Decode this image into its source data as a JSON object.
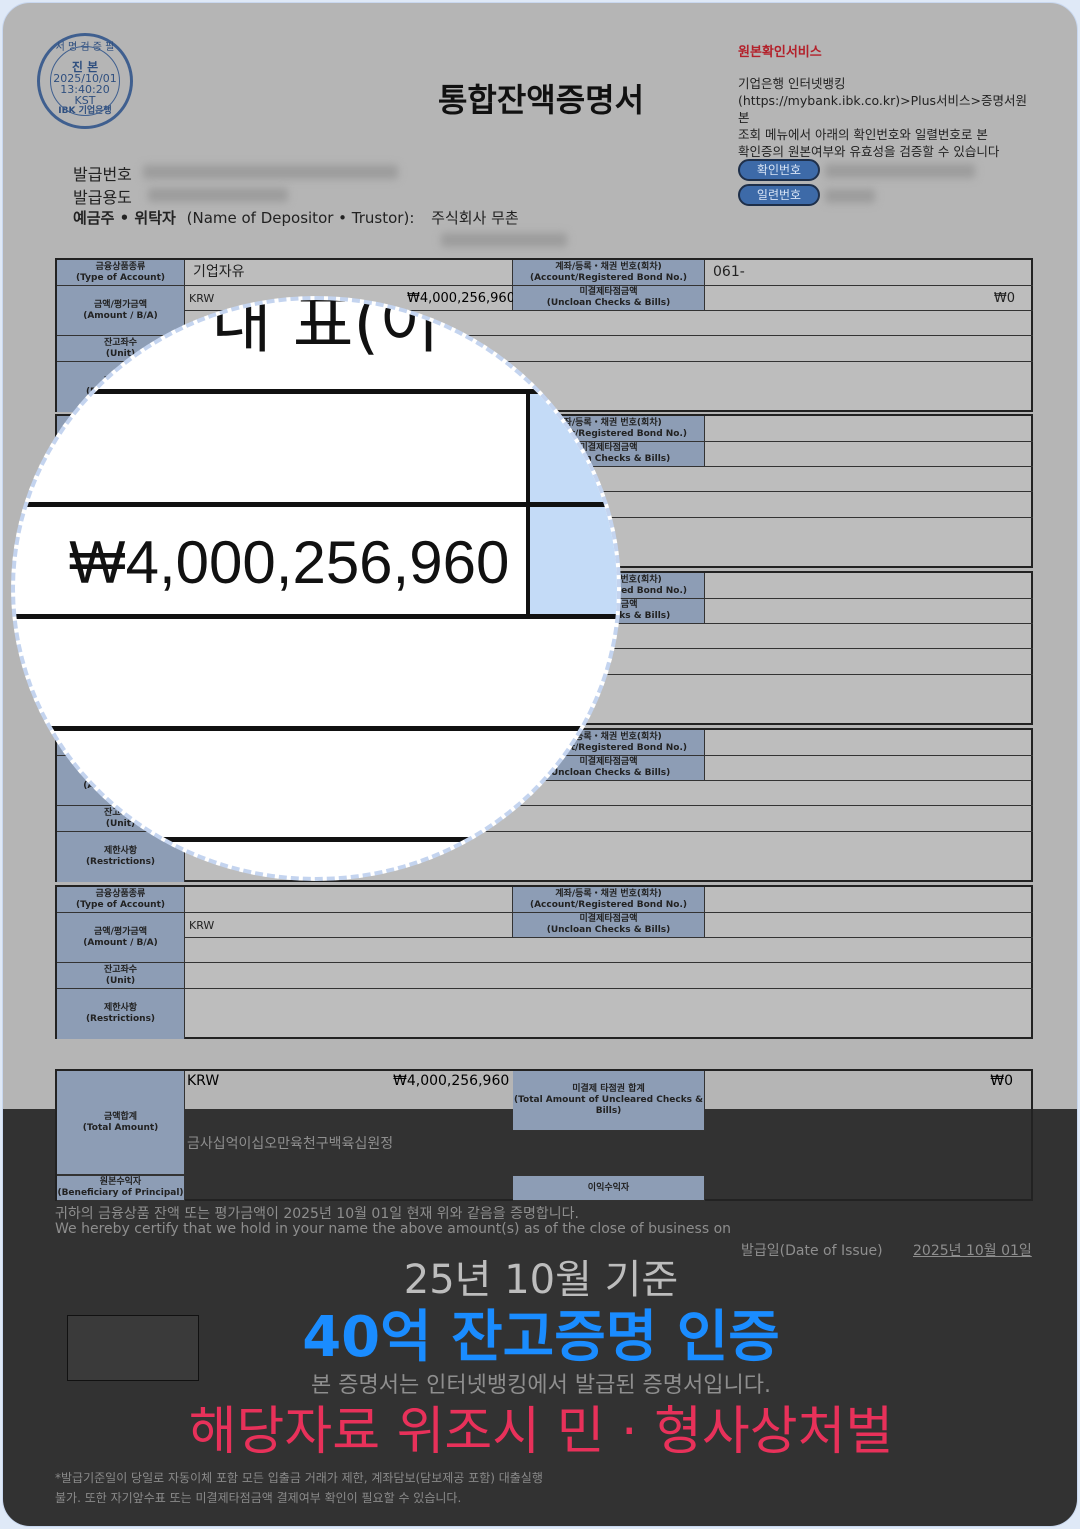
{
  "stamp": {
    "top": "서 명 검 증 필",
    "label": "진 본",
    "date": "2025/10/01",
    "time": "13:40:20",
    "tz": "KST",
    "bank": "IBK 기업은행"
  },
  "doc_title": "통합잔액증명서",
  "service": {
    "title": "원본확인서비스",
    "lines": [
      "기업은행 인터넷뱅킹",
      "(https://mybank.ibk.co.kr)>Plus서비스>증명서원본",
      "조회 메뉴에서 아래의 확인번호와 일렬번호로 본",
      "확인증의 원본여부와 유효성을 검증할 수 있습니다"
    ],
    "confirm_label": "확인번호",
    "serial_label": "일련번호"
  },
  "meta": {
    "issue_no_label": "발급번호",
    "purpose_label": "발급용도",
    "depositor_label": "예금주 • 위탁자",
    "depositor_en": "(Name of Depositor • Trustor):",
    "depositor_value": "주식회사 무촌"
  },
  "labels": {
    "type": "금융상품종류",
    "type_en": "(Type of Account)",
    "amount": "금액/평가금액",
    "amount_en": "(Amount / B/A)",
    "unit": "잔고좌수",
    "unit_en": "(Unit)",
    "restrict": "제한사항",
    "restrict_en": "(Restrictions)",
    "acct": "계좌/등록・채권 번호(회차)",
    "acct_en": "(Account/Registered Bond No.)",
    "unclear": "미결제타점금액",
    "unclear_en": "(Uncloan Checks & Bills)"
  },
  "accounts": [
    {
      "type": "기업자유",
      "acct_no": "061-",
      "currency": "KRW",
      "amount": "₩4,000,256,960",
      "unclear": "₩0"
    },
    {
      "type": "",
      "acct_no": "",
      "currency": "",
      "amount": "",
      "unclear": ""
    },
    {
      "type": "",
      "acct_no": "",
      "currency": "",
      "amount": "",
      "unclear": ""
    },
    {
      "type": "",
      "acct_no": "",
      "currency": "",
      "amount": "",
      "unclear": ""
    },
    {
      "type": "",
      "acct_no": "",
      "currency": "KRW",
      "amount": "",
      "unclear": ""
    }
  ],
  "total": {
    "label": "금액합계",
    "label_en": "(Total Amount)",
    "currency": "KRW",
    "amount": "₩4,000,256,960",
    "unclear_label": "미결제 타점권 합계",
    "unclear_label_en": "(Total Amount of Uncleared Checks & Bills)",
    "unclear": "₩0",
    "korean_amount": "금사십억이십오만육천구백육십원정",
    "beneficiary": "원본수익자",
    "beneficiary_en": "(Beneficiary of Principal)",
    "interest": "이익수익자"
  },
  "certify": {
    "ko": "귀하의 금융상품 잔액 또는 평가금액이 2025년 10월 01일 현재 위와 같음을 증명합니다.",
    "en": "We hereby certify that we hold in your name the above amount(s) as of the close of business on",
    "issue_label": "발급일(Date of Issue)",
    "issue_date": "2025년 10월 01일",
    "notice": "본 증명서는 인터넷뱅킹에서 발급된 증명서입니다.",
    "foot1": "*발급기준일이 당일로 자동이체 포함 모든 입출금 거래가 제한, 계좌담보(담보제공 포함) 대출실행",
    "foot2": "불가. 또한 자기앞수표 또는 미결제타점금액 결제여부 확인이 필요할 수 있습니다."
  },
  "magnifier": {
    "partial_text": "내 표(이",
    "amount": "₩4,000,256,960"
  },
  "promo": {
    "basis": "25년 10월 기준",
    "headline": "40억 잔고증명 인증",
    "warning": "해당자료 위조시 민 · 형사상처벌",
    "headline_color": "#1a8cff",
    "warning_color": "#e8315a"
  }
}
